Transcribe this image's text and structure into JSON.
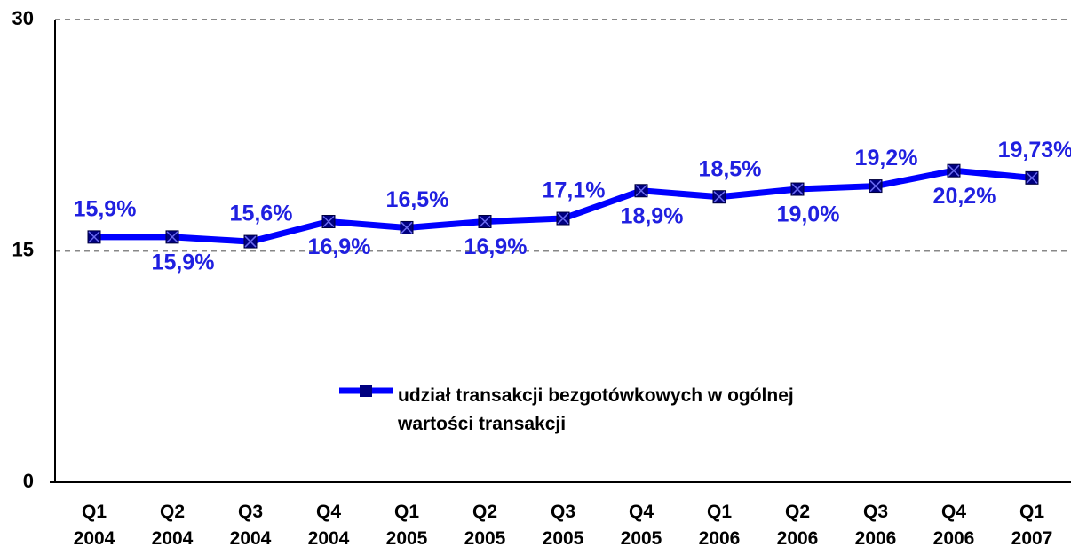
{
  "chart_data": {
    "type": "line",
    "categories": [
      "Q1 2004",
      "Q2 2004",
      "Q3 2004",
      "Q4 2004",
      "Q1 2005",
      "Q2 2005",
      "Q3 2005",
      "Q4 2005",
      "Q1 2006",
      "Q2 2006",
      "Q3 2006",
      "Q4 2006",
      "Q1 2007"
    ],
    "series": [
      {
        "name": "udział  transakcji bezgotówkowych w ogólnej wartości transakcji",
        "color": "#0000ff",
        "values": [
          15.9,
          15.9,
          15.6,
          16.9,
          16.5,
          16.9,
          17.1,
          18.9,
          18.5,
          19.0,
          19.2,
          20.2,
          19.73
        ],
        "value_labels": [
          "15,9%",
          "15,9%",
          "15,6%",
          "16,9%",
          "16,5%",
          "16,9%",
          "17,1%",
          "18,9%",
          "18,5%",
          "19,0%",
          "19,2%",
          "20,2%",
          "19,73%"
        ]
      }
    ],
    "ylim": [
      0,
      30
    ],
    "yticks": [
      0,
      15,
      30
    ],
    "grid": true,
    "legend": "center"
  }
}
